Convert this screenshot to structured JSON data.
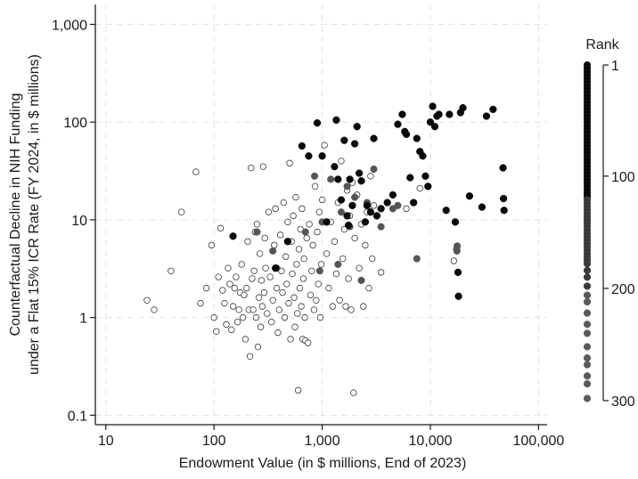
{
  "chart_data": {
    "type": "scatter",
    "xlabel": "Endowment Value (in $ millions, End of 2023)",
    "ylabel_lines": [
      "Counterfactual Decline in NIH Funding",
      "under a Flat 15% ICR Rate (FY 2024, in $ millions)"
    ],
    "x_scale": "log",
    "y_scale": "log",
    "xlim": [
      8,
      120000
    ],
    "ylim": [
      0.08,
      1600
    ],
    "x_ticks": [
      10,
      100,
      1000,
      10000,
      100000
    ],
    "x_tick_labels": [
      "10",
      "100",
      "1,000",
      "10,000",
      "100,000"
    ],
    "y_ticks": [
      0.1,
      1,
      10,
      100,
      1000
    ],
    "y_tick_labels": [
      "0.1",
      "1",
      "10",
      "100",
      "1,000"
    ],
    "grid": "dashed",
    "legend": {
      "title": "Rank",
      "position": "right",
      "range": [
        1,
        300
      ],
      "tick_values": [
        1,
        100,
        200,
        300
      ],
      "tick_labels": [
        "1",
        "100",
        "200",
        "300"
      ]
    },
    "series": [
      {
        "marker": "open-circle",
        "points": [
          [
            24,
            1.5
          ],
          [
            28,
            1.2
          ],
          [
            40,
            3.0
          ],
          [
            50,
            12
          ],
          [
            68,
            31
          ],
          [
            75,
            1.4
          ],
          [
            85,
            2.0
          ],
          [
            95,
            5.5
          ],
          [
            100,
            1.0
          ],
          [
            105,
            0.72
          ],
          [
            110,
            2.6
          ],
          [
            115,
            8.2
          ],
          [
            120,
            1.9
          ],
          [
            125,
            1.4
          ],
          [
            130,
            0.85
          ],
          [
            135,
            3.2
          ],
          [
            140,
            2.2
          ],
          [
            145,
            0.75
          ],
          [
            150,
            1.3
          ],
          [
            155,
            2.0
          ],
          [
            160,
            2.6
          ],
          [
            165,
            0.9
          ],
          [
            170,
            1.2
          ],
          [
            175,
            1.8
          ],
          [
            180,
            3.5
          ],
          [
            185,
            1.0
          ],
          [
            190,
            1.7
          ],
          [
            195,
            0.6
          ],
          [
            200,
            2.0
          ],
          [
            205,
            6.0
          ],
          [
            210,
            1.2
          ],
          [
            215,
            0.4
          ],
          [
            220,
            34
          ],
          [
            225,
            2.5
          ],
          [
            230,
            1.2
          ],
          [
            235,
            3.0
          ],
          [
            240,
            7.5
          ],
          [
            245,
            1.0
          ],
          [
            250,
            9.0
          ],
          [
            255,
            0.5
          ],
          [
            260,
            1.6
          ],
          [
            265,
            4.5
          ],
          [
            270,
            0.8
          ],
          [
            275,
            2.4
          ],
          [
            280,
            1.3
          ],
          [
            285,
            35
          ],
          [
            290,
            1.8
          ],
          [
            295,
            6.5
          ],
          [
            300,
            3.2
          ],
          [
            310,
            1.1
          ],
          [
            320,
            12
          ],
          [
            330,
            2.6
          ],
          [
            340,
            0.9
          ],
          [
            350,
            1.5
          ],
          [
            360,
            5.5
          ],
          [
            370,
            13
          ],
          [
            380,
            2.0
          ],
          [
            390,
            0.7
          ],
          [
            400,
            1.2
          ],
          [
            410,
            7.0
          ],
          [
            420,
            3.0
          ],
          [
            430,
            1.8
          ],
          [
            440,
            15
          ],
          [
            450,
            1.0
          ],
          [
            460,
            4.2
          ],
          [
            470,
            2.2
          ],
          [
            480,
            9.5
          ],
          [
            490,
            1.4
          ],
          [
            500,
            38
          ],
          [
            510,
            0.6
          ],
          [
            520,
            6.0
          ],
          [
            530,
            2.8
          ],
          [
            540,
            11
          ],
          [
            550,
            1.6
          ],
          [
            560,
            0.8
          ],
          [
            570,
            17
          ],
          [
            580,
            3.5
          ],
          [
            590,
            1.1
          ],
          [
            600,
            0.18
          ],
          [
            610,
            5.0
          ],
          [
            620,
            2.0
          ],
          [
            630,
            8.0
          ],
          [
            640,
            1.3
          ],
          [
            650,
            13
          ],
          [
            660,
            0.6
          ],
          [
            670,
            2.5
          ],
          [
            680,
            4.0
          ],
          [
            690,
            1.0
          ],
          [
            700,
            0.58
          ],
          [
            720,
            6.5
          ],
          [
            740,
            0.55
          ],
          [
            760,
            9.0
          ],
          [
            780,
            1.7
          ],
          [
            800,
            3.0
          ],
          [
            820,
            5.5
          ],
          [
            840,
            1.2
          ],
          [
            860,
            22
          ],
          [
            880,
            1.5
          ],
          [
            900,
            7.5
          ],
          [
            920,
            2.2
          ],
          [
            940,
            12
          ],
          [
            960,
            1.0
          ],
          [
            980,
            3.5
          ],
          [
            1000,
            16
          ],
          [
            1050,
            58
          ],
          [
            1100,
            4.5
          ],
          [
            1150,
            2.0
          ],
          [
            1200,
            9.5
          ],
          [
            1250,
            1.3
          ],
          [
            1300,
            6.0
          ],
          [
            1350,
            2.8
          ],
          [
            1400,
            15
          ],
          [
            1450,
            1.5
          ],
          [
            1500,
            40
          ],
          [
            1550,
            4.0
          ],
          [
            1600,
            8.0
          ],
          [
            1650,
            1.3
          ],
          [
            1700,
            20
          ],
          [
            1750,
            2.5
          ],
          [
            1800,
            11
          ],
          [
            1850,
            1.2
          ],
          [
            1900,
            24
          ],
          [
            1950,
            0.17
          ],
          [
            2000,
            6.5
          ],
          [
            2100,
            18
          ],
          [
            2200,
            3.2
          ],
          [
            2300,
            9.0
          ],
          [
            2400,
            1.3
          ],
          [
            2500,
            5.5
          ],
          [
            2600,
            12
          ],
          [
            2700,
            2.0
          ],
          [
            2800,
            28
          ],
          [
            2900,
            4.0
          ],
          [
            3000,
            14
          ],
          [
            3500,
            2.9
          ],
          [
            6000,
            13
          ],
          [
            8000,
            21
          ],
          [
            16500,
            3.8
          ]
        ]
      },
      {
        "marker": "filled-circle-gray",
        "points": [
          [
            250,
            7.5
          ],
          [
            350,
            4.8
          ],
          [
            380,
            3.2
          ],
          [
            480,
            6.0
          ],
          [
            700,
            7.5
          ],
          [
            850,
            28
          ],
          [
            950,
            3.0
          ],
          [
            1000,
            9.5
          ],
          [
            1200,
            26
          ],
          [
            1400,
            3.5
          ],
          [
            1500,
            12
          ],
          [
            1700,
            22
          ],
          [
            1800,
            8.5
          ],
          [
            2000,
            17
          ],
          [
            2300,
            2.4
          ],
          [
            2600,
            15
          ],
          [
            2800,
            12
          ],
          [
            3000,
            33
          ],
          [
            3500,
            8.5
          ],
          [
            4500,
            13
          ],
          [
            5000,
            14
          ],
          [
            7500,
            4.0
          ],
          [
            17500,
            5.0
          ],
          [
            17600,
            4.8
          ],
          [
            17700,
            5.4
          ]
        ]
      },
      {
        "marker": "filled-circle-black",
        "points": [
          [
            150,
            6.8
          ],
          [
            370,
            3.2
          ],
          [
            480,
            6.0
          ],
          [
            650,
            57
          ],
          [
            750,
            45
          ],
          [
            900,
            98
          ],
          [
            1000,
            45
          ],
          [
            1100,
            9.5
          ],
          [
            1300,
            35
          ],
          [
            1350,
            105
          ],
          [
            1400,
            26
          ],
          [
            1500,
            16
          ],
          [
            1600,
            65
          ],
          [
            1700,
            11
          ],
          [
            1750,
            8.8
          ],
          [
            1800,
            26
          ],
          [
            1900,
            14
          ],
          [
            2000,
            60
          ],
          [
            2100,
            90
          ],
          [
            2200,
            30
          ],
          [
            2300,
            25
          ],
          [
            2500,
            9.5
          ],
          [
            2600,
            14
          ],
          [
            2800,
            12
          ],
          [
            3000,
            68
          ],
          [
            3200,
            11
          ],
          [
            3500,
            13
          ],
          [
            4000,
            15
          ],
          [
            4500,
            18
          ],
          [
            5000,
            95
          ],
          [
            5500,
            120
          ],
          [
            5800,
            80
          ],
          [
            6000,
            75
          ],
          [
            6500,
            27
          ],
          [
            7000,
            15
          ],
          [
            7500,
            68
          ],
          [
            8000,
            50
          ],
          [
            8500,
            45
          ],
          [
            9000,
            28
          ],
          [
            9500,
            22
          ],
          [
            10000,
            100
          ],
          [
            10500,
            145
          ],
          [
            11000,
            90
          ],
          [
            11500,
            115
          ],
          [
            12000,
            120
          ],
          [
            14000,
            12.5
          ],
          [
            15000,
            120
          ],
          [
            17000,
            9.5
          ],
          [
            18000,
            2.9
          ],
          [
            18200,
            1.65
          ],
          [
            19000,
            125
          ],
          [
            20000,
            140
          ],
          [
            23000,
            17.5
          ],
          [
            30000,
            13.5
          ],
          [
            33000,
            115
          ],
          [
            38000,
            135
          ],
          [
            47000,
            34
          ],
          [
            47500,
            16.5
          ],
          [
            48000,
            12.5
          ]
        ]
      }
    ]
  }
}
